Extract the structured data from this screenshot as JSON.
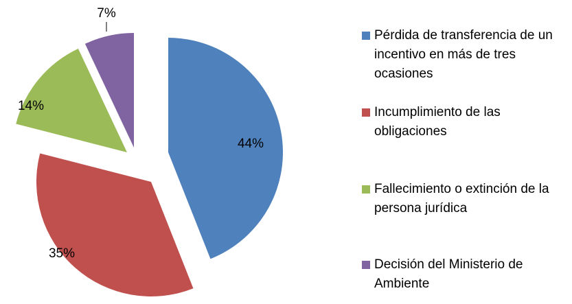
{
  "chart_data": {
    "type": "pie",
    "categories": [
      "Pérdida de transferencia de un incentivo en más de tres ocasiones",
      "Incumplimiento de las obligaciones",
      "Fallecimiento o extinción de la persona jurídica",
      "Decisión del Ministerio de Ambiente"
    ],
    "values": [
      44,
      35,
      14,
      7
    ],
    "value_labels": [
      "44%",
      "35%",
      "14%",
      "7%"
    ],
    "colors": [
      "#4f81bd",
      "#c0504d",
      "#9bbb59",
      "#8064a2"
    ],
    "legend": "right"
  }
}
